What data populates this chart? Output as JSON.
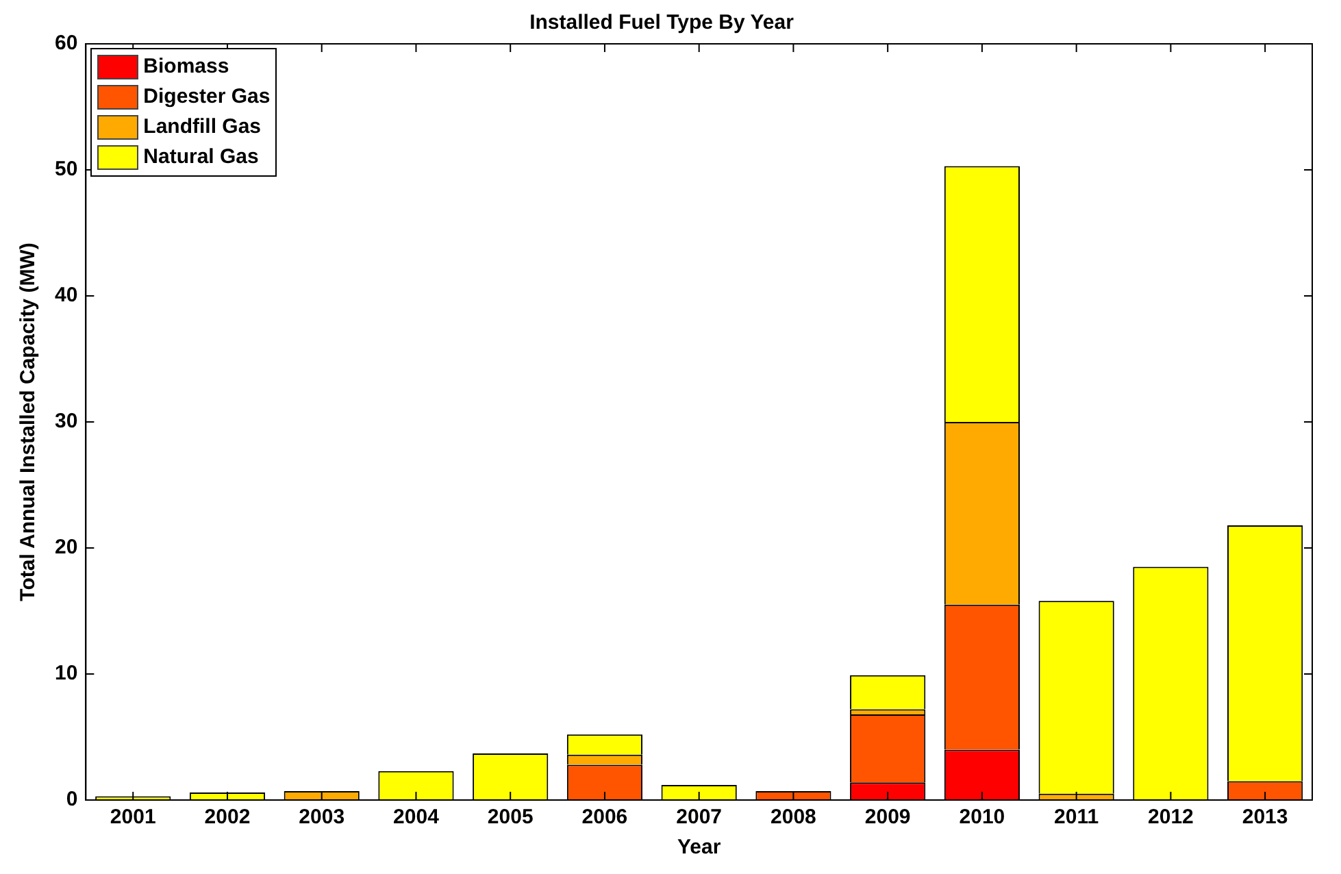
{
  "chart_data": {
    "type": "bar",
    "title": "Installed Fuel Type By Year",
    "xlabel": "Year",
    "ylabel": "Total Annual Installed Capacity (MW)",
    "categories": [
      "2001",
      "2002",
      "2003",
      "2004",
      "2005",
      "2006",
      "2007",
      "2008",
      "2009",
      "2010",
      "2011",
      "2012",
      "2013"
    ],
    "stacked": true,
    "ylim": [
      0,
      60
    ],
    "yticks": [
      0,
      10,
      20,
      30,
      40,
      50,
      60
    ],
    "grid": false,
    "legend": "top left",
    "series": [
      {
        "name": "Biomass",
        "color": "#ff0000",
        "values": [
          0,
          0,
          0,
          0,
          0,
          0,
          0,
          0,
          1.4,
          4.0,
          0,
          0,
          0
        ]
      },
      {
        "name": "Digester Gas",
        "color": "#ff5500",
        "values": [
          0,
          0,
          0,
          0,
          0,
          2.8,
          0,
          0.7,
          5.4,
          11.5,
          0,
          0,
          1.5
        ]
      },
      {
        "name": "Landfill Gas",
        "color": "#ffaa00",
        "values": [
          0,
          0,
          0.7,
          0,
          0,
          0.8,
          0,
          0,
          0.4,
          14.5,
          0.5,
          0,
          0
        ]
      },
      {
        "name": "Natural Gas",
        "color": "#ffff00",
        "values": [
          0.3,
          0.6,
          0,
          2.3,
          3.7,
          1.6,
          1.2,
          0,
          2.7,
          20.3,
          15.3,
          18.5,
          20.3
        ]
      }
    ]
  }
}
